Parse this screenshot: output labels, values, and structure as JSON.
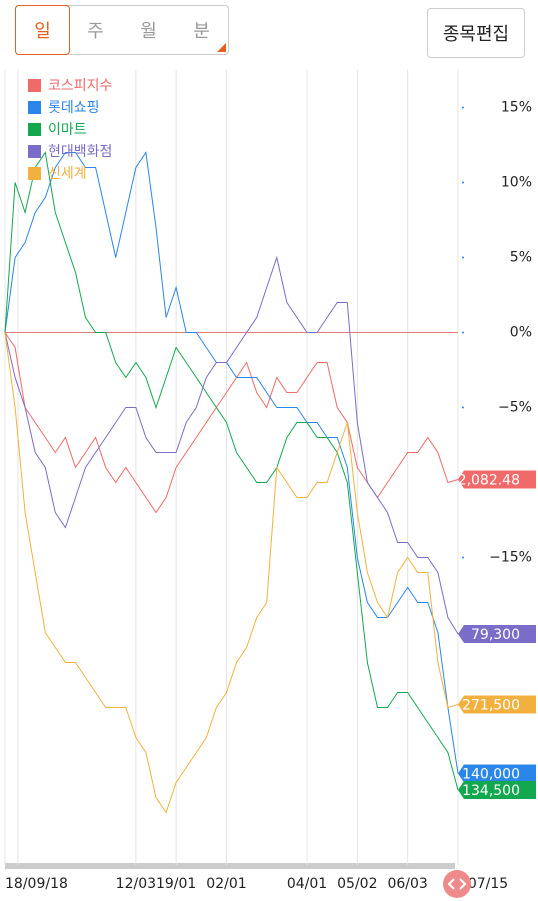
{
  "tabs": [
    "일",
    "주",
    "월",
    "분"
  ],
  "edit_button": "종목편집",
  "chart_data": {
    "type": "line",
    "categories": [
      "18/09/18",
      null,
      null,
      null,
      null,
      null,
      null,
      null,
      null,
      null,
      null,
      null,
      null,
      "12/03",
      null,
      null,
      null,
      "19/01",
      null,
      null,
      null,
      null,
      "02/01",
      null,
      null,
      null,
      null,
      null,
      null,
      null,
      "04/01",
      null,
      null,
      null,
      null,
      "05/02",
      null,
      null,
      null,
      null,
      "06/03",
      null,
      null,
      null,
      null,
      "07/15"
    ],
    "ylim": [
      -35.5,
      17.5
    ],
    "yticks": [
      {
        "value": 15,
        "label": "15%"
      },
      {
        "value": 10,
        "label": "10%"
      },
      {
        "value": 5,
        "label": "5%"
      },
      {
        "value": 0,
        "label": "0%"
      },
      {
        "value": -5,
        "label": "−5%"
      },
      {
        "value": -15,
        "label": "−15%"
      }
    ],
    "legend": "top-left",
    "series": [
      {
        "name": "코스피지수",
        "color": "#f06a6a",
        "end_label": "2,082.48",
        "values": [
          0,
          -1,
          -5,
          -6,
          -7,
          -8,
          -7,
          -9,
          -8,
          -7,
          -9,
          -10,
          -9,
          -10,
          -11,
          -12,
          -11,
          -9,
          -8,
          -7,
          -6,
          -5,
          -4,
          -3,
          -2,
          -4,
          -5,
          -3,
          -4,
          -4,
          -3,
          -2,
          -2,
          -5,
          -6,
          -9,
          -10,
          -11,
          -10,
          -9,
          -8,
          -8,
          -7,
          -8,
          -10,
          -9.8
        ]
      },
      {
        "name": "롯데쇼핑",
        "color": "#2a86e8",
        "end_label": "140,000",
        "values": [
          0,
          5,
          6,
          8,
          9,
          11,
          12,
          12,
          11,
          11,
          8,
          5,
          8,
          11,
          12,
          7,
          1,
          3,
          0,
          0,
          -1,
          -2,
          -2,
          -3,
          -3,
          -3,
          -4,
          -5,
          -5,
          -5,
          -6,
          -6,
          -7,
          -7,
          -9,
          -15,
          -18,
          -19,
          -19,
          -18,
          -17,
          -18,
          -18,
          -20,
          -25,
          -29.4
        ]
      },
      {
        "name": "이마트",
        "color": "#13a84f",
        "end_label": "134,500",
        "values": [
          0,
          10,
          8,
          11,
          12,
          8,
          6,
          4,
          1,
          0,
          0,
          -2,
          -3,
          -2,
          -3,
          -5,
          -3,
          -1,
          -2,
          -3,
          -4,
          -5,
          -6,
          -8,
          -9,
          -10,
          -10,
          -9,
          -7,
          -6,
          -6,
          -7,
          -7,
          -8,
          -10,
          -16,
          -22,
          -25,
          -25,
          -24,
          -24,
          -25,
          -26,
          -27,
          -28,
          -30.5
        ]
      },
      {
        "name": "현대백화점",
        "color": "#7a6cc9",
        "end_label": "79,300",
        "values": [
          0,
          -3,
          -5,
          -8,
          -9,
          -12,
          -13,
          -11,
          -9,
          -8,
          -7,
          -6,
          -5,
          -5,
          -7,
          -8,
          -8,
          -8,
          -6,
          -5,
          -3,
          -2,
          -2,
          -1,
          0,
          1,
          3,
          5,
          2,
          1,
          0,
          0,
          1,
          2,
          2,
          -6,
          -10,
          -11,
          -12,
          -14,
          -14,
          -15,
          -15,
          -16,
          -19,
          -20.1
        ]
      },
      {
        "name": "신세계",
        "color": "#f2b13e",
        "end_label": "271,500",
        "values": [
          0,
          -5,
          -12,
          -16,
          -20,
          -21,
          -22,
          -22,
          -23,
          -24,
          -25,
          -25,
          -25,
          -27,
          -28,
          -31,
          -32,
          -30,
          -29,
          -28,
          -27,
          -25,
          -24,
          -22,
          -21,
          -19,
          -18,
          -9,
          -10,
          -11,
          -11,
          -10,
          -10,
          -8,
          -6,
          -12,
          -16,
          -18,
          -19,
          -16,
          -15,
          -16,
          -16,
          -22,
          -25,
          -24.8
        ]
      }
    ]
  }
}
